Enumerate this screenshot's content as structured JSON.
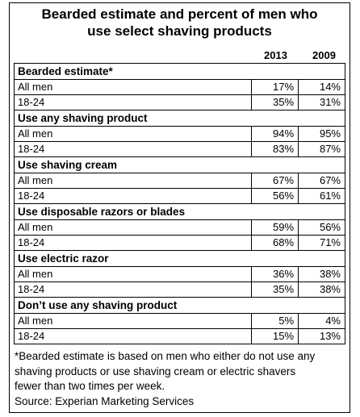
{
  "chart_data": {
    "type": "table",
    "title_line1": "Bearded estimate and percent of men who",
    "title_line2": "use select shaving products",
    "columns": [
      "2013",
      "2009"
    ],
    "sections": [
      {
        "name": "Bearded estimate*",
        "rows": [
          {
            "label": "All men",
            "values": [
              "17%",
              "14%"
            ]
          },
          {
            "label": "18-24",
            "values": [
              "35%",
              "31%"
            ]
          }
        ]
      },
      {
        "name": "Use any shaving product",
        "rows": [
          {
            "label": "All men",
            "values": [
              "94%",
              "95%"
            ]
          },
          {
            "label": "18-24",
            "values": [
              "83%",
              "87%"
            ]
          }
        ]
      },
      {
        "name": "Use shaving cream",
        "rows": [
          {
            "label": "All men",
            "values": [
              "67%",
              "67%"
            ]
          },
          {
            "label": "18-24",
            "values": [
              "56%",
              "61%"
            ]
          }
        ]
      },
      {
        "name": "Use disposable razors or blades",
        "rows": [
          {
            "label": "All men",
            "values": [
              "59%",
              "56%"
            ]
          },
          {
            "label": "18-24",
            "values": [
              "68%",
              "71%"
            ]
          }
        ]
      },
      {
        "name": "Use electric razor",
        "rows": [
          {
            "label": "All men",
            "values": [
              "36%",
              "38%"
            ]
          },
          {
            "label": "18-24",
            "values": [
              "35%",
              "38%"
            ]
          }
        ]
      },
      {
        "name": "Don’t use any shaving product",
        "rows": [
          {
            "label": "All men",
            "values": [
              "5%",
              "4%"
            ]
          },
          {
            "label": "18-24",
            "values": [
              "15%",
              "13%"
            ]
          }
        ]
      }
    ],
    "footnote": [
      "*Bearded estimate is based on men who either do not use any",
      "shaving products or use shaving cream or electric shavers",
      "fewer than two times per week."
    ],
    "source": "Source: Experian Marketing Services"
  }
}
